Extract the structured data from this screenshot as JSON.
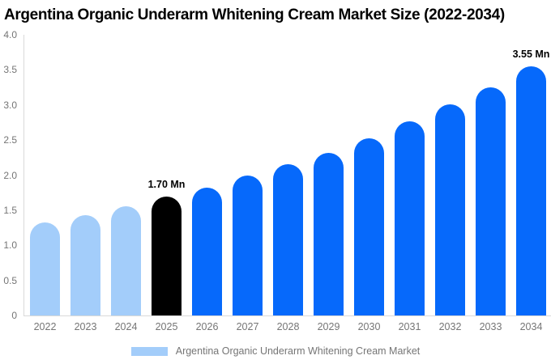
{
  "chart_data": {
    "type": "bar",
    "title": "Argentina Organic Underarm Whitening Cream Market Size (2022-2034)",
    "categories": [
      "2022",
      "2023",
      "2024",
      "2025",
      "2026",
      "2027",
      "2028",
      "2029",
      "2030",
      "2031",
      "2032",
      "2033",
      "2034"
    ],
    "values": [
      1.32,
      1.43,
      1.56,
      1.7,
      1.82,
      2.0,
      2.16,
      2.32,
      2.53,
      2.77,
      3.01,
      3.25,
      3.55
    ],
    "segments": [
      "past",
      "past",
      "past",
      "current",
      "forecast",
      "forecast",
      "forecast",
      "forecast",
      "forecast",
      "forecast",
      "forecast",
      "forecast",
      "forecast"
    ],
    "bar_labels": [
      "",
      "",
      "",
      "1.70 Mn",
      "",
      "",
      "",
      "",
      "",
      "",
      "",
      "",
      "3.55 Mn"
    ],
    "ylim": [
      0,
      4.0
    ],
    "ytick_values": [
      4.0,
      3.5,
      3.0,
      2.5,
      2.0,
      1.5,
      1.0,
      0.5,
      0
    ],
    "ytick_labels": [
      "4.0",
      "3.5",
      "3.0",
      "2.5",
      "2.0",
      "1.5",
      "1.0",
      "0.5",
      "0"
    ],
    "grid": false,
    "legend_position": "bottom",
    "legend_label": "Argentina Organic Underarm Whitening Cream Market",
    "colors": {
      "past": "#a3cdfa",
      "current": "#000000",
      "forecast": "#0669fb",
      "axis_line": "#d9d9d9",
      "tick_text": "#757575",
      "title_text": "#000000"
    }
  }
}
